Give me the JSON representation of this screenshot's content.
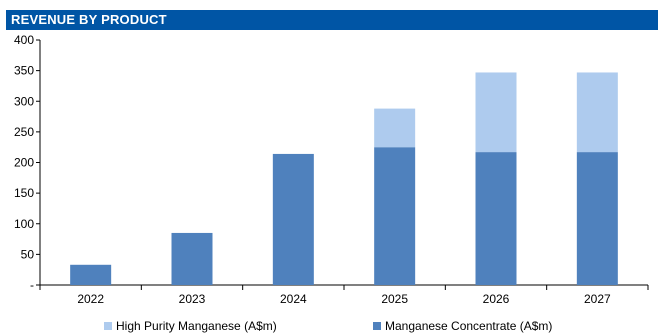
{
  "chart_data": {
    "type": "bar",
    "stacked": true,
    "title": "REVENUE BY PRODUCT",
    "categories": [
      "2022",
      "2023",
      "2024",
      "2025",
      "2026",
      "2027"
    ],
    "series": [
      {
        "name": "Manganese Concentrate (A$m)",
        "color": "#4F81BD",
        "values": [
          33,
          85,
          214,
          225,
          217,
          217
        ]
      },
      {
        "name": "High Purity Manganese (A$m)",
        "color": "#AECBEE",
        "values": [
          0,
          0,
          0,
          63,
          130,
          130
        ]
      }
    ],
    "legend_order": [
      1,
      0
    ],
    "ylim": [
      0,
      400
    ],
    "y_ticks": [
      {
        "value": 0,
        "label": "-"
      },
      {
        "value": 50,
        "label": "50"
      },
      {
        "value": 100,
        "label": "100"
      },
      {
        "value": 150,
        "label": "150"
      },
      {
        "value": 200,
        "label": "200"
      },
      {
        "value": 250,
        "label": "250"
      },
      {
        "value": 300,
        "label": "300"
      },
      {
        "value": 350,
        "label": "350"
      },
      {
        "value": 400,
        "label": "400"
      }
    ],
    "grid": false,
    "legend_position": "bottom",
    "title_bar_color": "#0055A5"
  }
}
